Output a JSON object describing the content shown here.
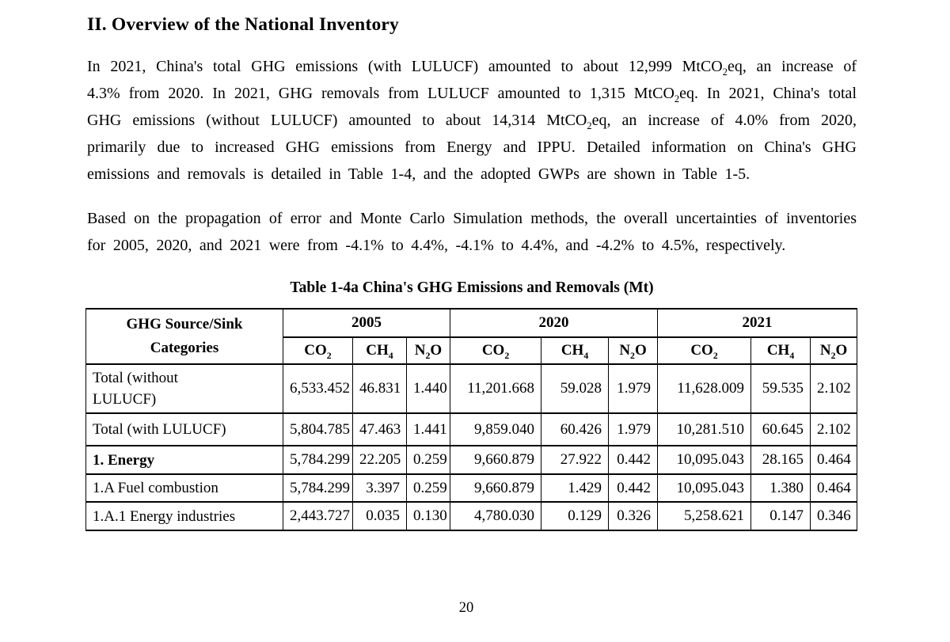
{
  "page": {
    "heading": "II. Overview of the National Inventory",
    "page_number": "20"
  },
  "paragraphs": {
    "p1": [
      {
        "t": "In 2021, China's total GHG emissions (with LULUCF) amounted to about 12,999 MtCO"
      },
      {
        "t": "2",
        "sub": true
      },
      {
        "t": "eq, an increase of 4.3% from 2020. In 2021, GHG removals from LULUCF amounted to 1,315 MtCO"
      },
      {
        "t": "2",
        "sub": true
      },
      {
        "t": "eq. In 2021, China's total GHG emissions (without LULUCF) amounted to about 14,314 MtCO"
      },
      {
        "t": "2",
        "sub": true
      },
      {
        "t": "eq, an increase of 4.0% from 2020, primarily due to increased GHG emissions from Energy and IPPU. Detailed information on China's GHG emissions and removals is detailed in Table 1-4, and the adopted GWPs are shown in Table 1-5."
      }
    ],
    "p2": [
      {
        "t": "Based on the propagation of error and Monte Carlo Simulation methods, the overall uncertainties of inventories for 2005, 2020, and 2021 were from -4.1% to 4.4%, -4.1% to 4.4%, and -4.2% to 4.5%, respectively."
      }
    ]
  },
  "table": {
    "caption": "Table 1-4a China's GHG Emissions and Removals (Mt)",
    "corner_header": "GHG Source/Sink\nCategories",
    "year_groups": [
      "2005",
      "2020",
      "2021"
    ],
    "gases": [
      [
        {
          "t": "CO"
        },
        {
          "t": "2",
          "sub": true
        }
      ],
      [
        {
          "t": "CH"
        },
        {
          "t": "4",
          "sub": true
        }
      ],
      [
        {
          "t": "N"
        },
        {
          "t": "2",
          "sub": true
        },
        {
          "t": "O"
        }
      ]
    ],
    "rows": [
      {
        "label": "Total (without\nLULUCF)",
        "values": [
          "6,533.452",
          "46.831",
          "1.440",
          "11,201.668",
          "59.028",
          "1.979",
          "11,628.009",
          "59.535",
          "2.102"
        ]
      },
      {
        "label": "Total (with LULUCF)",
        "values": [
          "5,804.785",
          "47.463",
          "1.441",
          "9,859.040",
          "60.426",
          "1.979",
          "10,281.510",
          "60.645",
          "2.102"
        ]
      },
      {
        "label": "1. Energy",
        "values": [
          "5,784.299",
          "22.205",
          "0.259",
          "9,660.879",
          "27.922",
          "0.442",
          "10,095.043",
          "28.165",
          "0.464"
        ]
      },
      {
        "label": "1.A Fuel combustion",
        "values": [
          "5,784.299",
          "3.397",
          "0.259",
          "9,660.879",
          "1.429",
          "0.442",
          "10,095.043",
          "1.380",
          "0.464"
        ]
      },
      {
        "label": "1.A.1 Energy industries",
        "values": [
          "2,443.727",
          "0.035",
          "0.130",
          "4,780.030",
          "0.129",
          "0.326",
          "5,258.621",
          "0.147",
          "0.346"
        ]
      }
    ]
  }
}
